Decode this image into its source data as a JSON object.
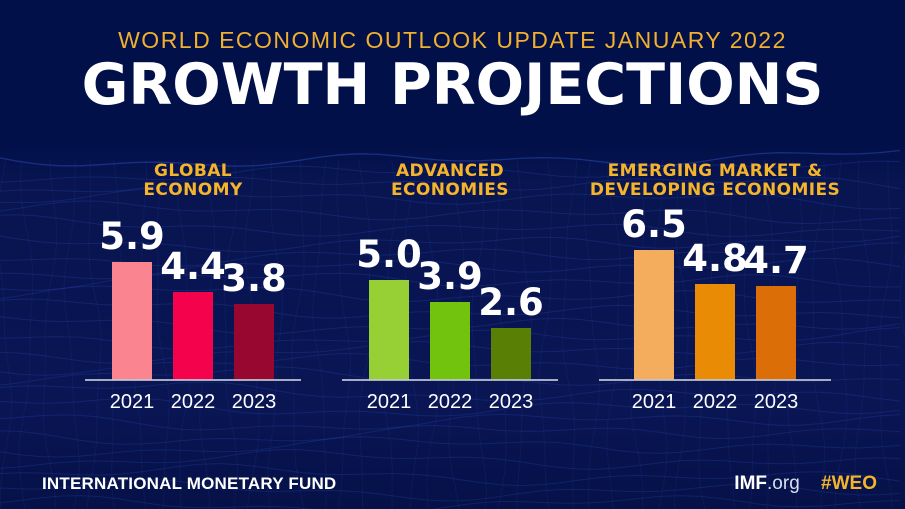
{
  "header": {
    "kicker": "WORLD ECONOMIC OUTLOOK UPDATE JANUARY 2022",
    "title": "GROWTH PROJECTIONS"
  },
  "chart_data": [
    {
      "type": "bar",
      "title": "GLOBAL ECONOMY",
      "title_lines": [
        "GLOBAL",
        "ECONOMY"
      ],
      "categories": [
        "2021",
        "2022",
        "2023"
      ],
      "values": [
        5.9,
        4.4,
        3.8
      ],
      "value_labels": [
        "5.9",
        "4.4",
        "3.8"
      ],
      "unit": "percent",
      "bar_colors": [
        "#FA8590",
        "#F4024C",
        "#98072F"
      ],
      "ylim": [
        0,
        7
      ],
      "grid": false,
      "legend": false
    },
    {
      "type": "bar",
      "title": "ADVANCED ECONOMIES",
      "title_lines": [
        "ADVANCED",
        "ECONOMIES"
      ],
      "categories": [
        "2021",
        "2022",
        "2023"
      ],
      "values": [
        5.0,
        3.9,
        2.6
      ],
      "value_labels": [
        "5.0",
        "3.9",
        "2.6"
      ],
      "unit": "percent",
      "bar_colors": [
        "#97D035",
        "#72C30D",
        "#597F04"
      ],
      "ylim": [
        0,
        7
      ],
      "grid": false,
      "legend": false
    },
    {
      "type": "bar",
      "title": "EMERGING MARKET & DEVELOPING ECONOMIES",
      "title_lines": [
        "EMERGING MARKET &",
        "DEVELOPING ECONOMIES"
      ],
      "categories": [
        "2021",
        "2022",
        "2023"
      ],
      "values": [
        6.5,
        4.8,
        4.7
      ],
      "value_labels": [
        "6.5",
        "4.8",
        "4.7"
      ],
      "unit": "percent",
      "bar_colors": [
        "#F3AD5D",
        "#EA8B06",
        "#DB6E07"
      ],
      "ylim": [
        0,
        7
      ],
      "grid": false,
      "legend": false
    }
  ],
  "footer": {
    "organization": "INTERNATIONAL MONETARY FUND",
    "website_bold": "IMF",
    "website_rest": ".org",
    "hashtag": "#WEO"
  },
  "colors": {
    "background": "#04114A",
    "mesh_line": "#2B4CB8",
    "accent_gold": "#F5B42A",
    "text_white": "#FFFFFF",
    "axis_line": "#C2C7D5"
  }
}
